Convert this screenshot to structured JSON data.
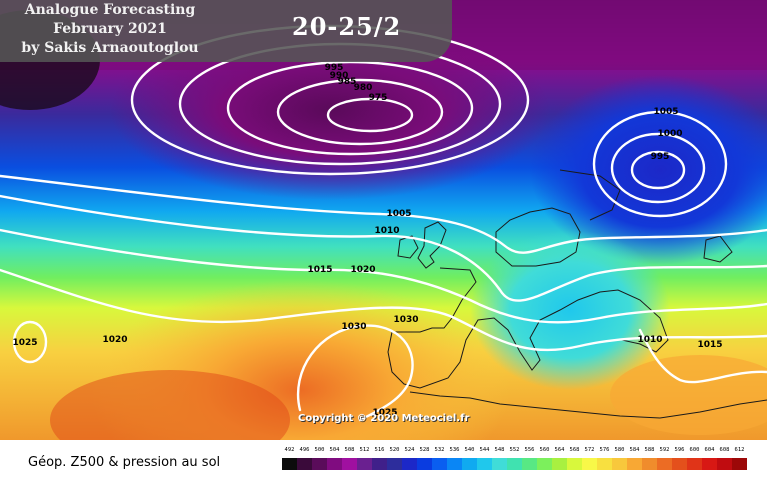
{
  "header": {
    "title_lines": [
      "Analogue Forecasting",
      "February 2021",
      "by Sakis Arnaoutoglou"
    ],
    "period": "20-25/2"
  },
  "copyright": "Copyright © 2020 Meteociel.fr",
  "legend": {
    "title": "Géop. Z500 & pression au sol",
    "values": [
      "492",
      "496",
      "500",
      "504",
      "508",
      "512",
      "516",
      "520",
      "524",
      "528",
      "532",
      "536",
      "540",
      "544",
      "548",
      "552",
      "556",
      "560",
      "564",
      "568",
      "572",
      "576",
      "580",
      "584",
      "588",
      "592",
      "596",
      "600",
      "604",
      "608",
      "612"
    ],
    "colors": [
      "#0c0c0c",
      "#3a0a3a",
      "#5a0c5a",
      "#800c80",
      "#a010a0",
      "#6a2090",
      "#40208a",
      "#2d2d9c",
      "#1c28c8",
      "#0a3ce0",
      "#0a5ef0",
      "#0a86f5",
      "#10aaf0",
      "#20c8ec",
      "#40dcd8",
      "#40e2b0",
      "#58e884",
      "#7cf05c",
      "#a8f040",
      "#d8f83c",
      "#f8f848",
      "#f8e040",
      "#f8c83c",
      "#f8a834",
      "#f08c2c",
      "#ec6c24",
      "#e4501c",
      "#e03418",
      "#d81814",
      "#c00c10",
      "#9c0808"
    ]
  },
  "isobars": [
    {
      "label": "995"
    },
    {
      "label": "990"
    },
    {
      "label": "985"
    },
    {
      "label": "980"
    },
    {
      "label": "975"
    },
    {
      "label": "1005"
    },
    {
      "label": "1000"
    },
    {
      "label": "995"
    },
    {
      "label": "1005"
    },
    {
      "label": "1010"
    },
    {
      "label": "1015"
    },
    {
      "label": "1020"
    },
    {
      "label": "1025"
    },
    {
      "label": "1020"
    },
    {
      "label": "1030"
    },
    {
      "label": "1030"
    },
    {
      "label": "1010"
    },
    {
      "label": "1015"
    },
    {
      "label": "1025"
    }
  ],
  "icons": {
    "map_background": "geopotential-shading"
  }
}
